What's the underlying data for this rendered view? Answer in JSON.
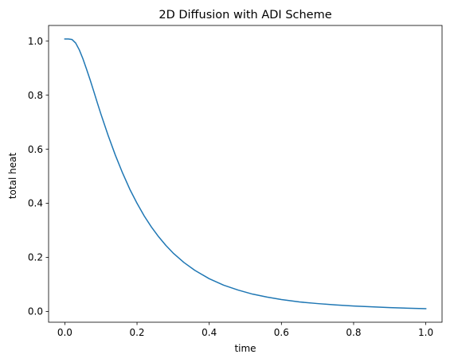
{
  "chart_data": {
    "type": "line",
    "title": "2D Diffusion with ADI Scheme",
    "xlabel": "time",
    "ylabel": "total heat",
    "xlim": [
      -0.045,
      1.045
    ],
    "ylim": [
      -0.04,
      1.058
    ],
    "xticks": [
      0.0,
      0.2,
      0.4,
      0.6,
      0.8,
      1.0
    ],
    "xtick_labels": [
      "0.0",
      "0.2",
      "0.4",
      "0.6",
      "0.8",
      "1.0"
    ],
    "yticks": [
      0.0,
      0.2,
      0.4,
      0.6,
      0.8,
      1.0
    ],
    "ytick_labels": [
      "0.0",
      "0.2",
      "0.4",
      "0.6",
      "0.8",
      "1.0"
    ],
    "grid": false,
    "series": [
      {
        "color": "#1f77b4",
        "x": [
          0.0,
          0.01,
          0.02,
          0.03,
          0.04,
          0.05,
          0.06,
          0.07,
          0.08,
          0.09,
          0.1,
          0.12,
          0.14,
          0.16,
          0.18,
          0.2,
          0.22,
          0.24,
          0.26,
          0.28,
          0.3,
          0.33,
          0.36,
          0.4,
          0.44,
          0.48,
          0.52,
          0.56,
          0.6,
          0.65,
          0.7,
          0.75,
          0.8,
          0.85,
          0.9,
          0.95,
          1.0
        ],
        "y": [
          1.008,
          1.008,
          1.006,
          0.993,
          0.968,
          0.935,
          0.897,
          0.857,
          0.815,
          0.772,
          0.73,
          0.651,
          0.578,
          0.512,
          0.452,
          0.4,
          0.353,
          0.312,
          0.276,
          0.244,
          0.216,
          0.181,
          0.152,
          0.121,
          0.097,
          0.079,
          0.064,
          0.053,
          0.044,
          0.035,
          0.029,
          0.024,
          0.02,
          0.017,
          0.014,
          0.012,
          0.01
        ]
      }
    ]
  }
}
